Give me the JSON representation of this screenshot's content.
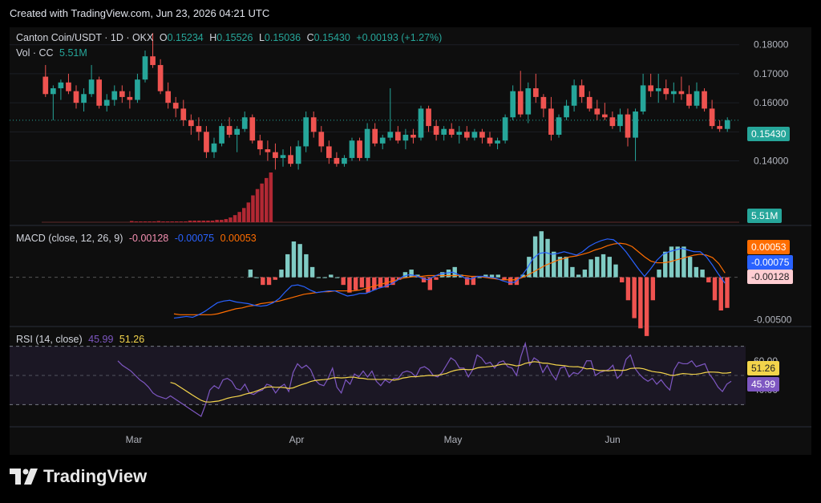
{
  "header": {
    "text": "Created with TradingView.com, Jun 23, 2026 04:21 UTC"
  },
  "footer": {
    "logo_text": "TradingView"
  },
  "colors": {
    "up": "#26a69a",
    "down": "#ef5350",
    "macd": "#2962ff",
    "signal": "#ff6d00",
    "rsi": "#7e57c2",
    "rsi_ma": "#f3d44b",
    "volume": "#b22833"
  },
  "legend": {
    "symbol": "Canton Coin/USDT · 1D · OKX",
    "o_label": "O",
    "o_value": "0.15234",
    "h_label": "H",
    "h_value": "0.15526",
    "l_label": "L",
    "l_value": "0.15036",
    "c_label": "C",
    "c_value": "0.15430",
    "change": "+0.00193 (+1.27%)",
    "vol_label": "Vol · CC",
    "vol_value": "5.51M",
    "macd_label": "MACD (close, 12, 26, 9)",
    "macd_hist": "-0.00128",
    "macd_line": "-0.00075",
    "macd_signal": "0.00053",
    "rsi_label": "RSI (14, close)",
    "rsi_value": "45.99",
    "rsi_ma": "51.26"
  },
  "tags": {
    "price": "0.15430",
    "volume": "5.51M",
    "signal": "0.00053",
    "macd": "-0.00075",
    "hist": "-0.00128",
    "rsi_ma": "51.26",
    "rsi": "45.99"
  },
  "chart_data": {
    "type": "candlestick",
    "price_axis": {
      "ticks": [
        "0.18000",
        "0.17000",
        "0.16000",
        "0.15000",
        "0.14000"
      ],
      "range": [
        0.128,
        0.186
      ]
    },
    "macd_axis": {
      "ticks": [
        "-0.00500"
      ]
    },
    "rsi_axis": {
      "ticks": [
        "60.00",
        "40.00"
      ],
      "bands": [
        70,
        30
      ]
    },
    "x_ticks": [
      "Mar",
      "Apr",
      "May",
      "Jun"
    ],
    "candles": [
      [
        0.169,
        0.173,
        0.162,
        0.163
      ],
      [
        0.163,
        0.166,
        0.154,
        0.165
      ],
      [
        0.165,
        0.168,
        0.161,
        0.167
      ],
      [
        0.167,
        0.17,
        0.163,
        0.164
      ],
      [
        0.164,
        0.166,
        0.158,
        0.16
      ],
      [
        0.16,
        0.165,
        0.157,
        0.163
      ],
      [
        0.163,
        0.173,
        0.162,
        0.168
      ],
      [
        0.168,
        0.169,
        0.158,
        0.159
      ],
      [
        0.159,
        0.163,
        0.157,
        0.161
      ],
      [
        0.161,
        0.166,
        0.159,
        0.164
      ],
      [
        0.164,
        0.166,
        0.16,
        0.162
      ],
      [
        0.162,
        0.164,
        0.158,
        0.161
      ],
      [
        0.161,
        0.17,
        0.16,
        0.168
      ],
      [
        0.168,
        0.178,
        0.167,
        0.176
      ],
      [
        0.176,
        0.184,
        0.172,
        0.173
      ],
      [
        0.173,
        0.175,
        0.163,
        0.164
      ],
      [
        0.164,
        0.167,
        0.158,
        0.16
      ],
      [
        0.16,
        0.162,
        0.155,
        0.158
      ],
      [
        0.158,
        0.161,
        0.152,
        0.154
      ],
      [
        0.154,
        0.156,
        0.149,
        0.152
      ],
      [
        0.152,
        0.155,
        0.147,
        0.15
      ],
      [
        0.15,
        0.152,
        0.141,
        0.143
      ],
      [
        0.143,
        0.148,
        0.141,
        0.146
      ],
      [
        0.146,
        0.153,
        0.145,
        0.152
      ],
      [
        0.152,
        0.155,
        0.148,
        0.149
      ],
      [
        0.149,
        0.152,
        0.143,
        0.151
      ],
      [
        0.151,
        0.157,
        0.15,
        0.155
      ],
      [
        0.155,
        0.156,
        0.146,
        0.147
      ],
      [
        0.147,
        0.149,
        0.142,
        0.144
      ],
      [
        0.144,
        0.147,
        0.14,
        0.143
      ],
      [
        0.143,
        0.146,
        0.137,
        0.141
      ],
      [
        0.141,
        0.144,
        0.138,
        0.142
      ],
      [
        0.142,
        0.145,
        0.138,
        0.139
      ],
      [
        0.139,
        0.147,
        0.137,
        0.145
      ],
      [
        0.145,
        0.157,
        0.143,
        0.155
      ],
      [
        0.155,
        0.157,
        0.148,
        0.15
      ],
      [
        0.15,
        0.152,
        0.143,
        0.145
      ],
      [
        0.145,
        0.147,
        0.139,
        0.141
      ],
      [
        0.141,
        0.143,
        0.138,
        0.139
      ],
      [
        0.139,
        0.142,
        0.138,
        0.141
      ],
      [
        0.141,
        0.148,
        0.14,
        0.147
      ],
      [
        0.147,
        0.148,
        0.14,
        0.141
      ],
      [
        0.141,
        0.153,
        0.14,
        0.151
      ],
      [
        0.151,
        0.153,
        0.145,
        0.146
      ],
      [
        0.146,
        0.149,
        0.144,
        0.148
      ],
      [
        0.148,
        0.165,
        0.147,
        0.15
      ],
      [
        0.15,
        0.152,
        0.146,
        0.147
      ],
      [
        0.147,
        0.151,
        0.144,
        0.149
      ],
      [
        0.149,
        0.151,
        0.146,
        0.148
      ],
      [
        0.148,
        0.159,
        0.147,
        0.158
      ],
      [
        0.158,
        0.159,
        0.15,
        0.152
      ],
      [
        0.152,
        0.154,
        0.147,
        0.149
      ],
      [
        0.149,
        0.152,
        0.147,
        0.151
      ],
      [
        0.151,
        0.153,
        0.148,
        0.149
      ],
      [
        0.149,
        0.152,
        0.146,
        0.15
      ],
      [
        0.15,
        0.152,
        0.147,
        0.148
      ],
      [
        0.148,
        0.151,
        0.147,
        0.15
      ],
      [
        0.15,
        0.151,
        0.146,
        0.148
      ],
      [
        0.148,
        0.15,
        0.145,
        0.146
      ],
      [
        0.146,
        0.148,
        0.144,
        0.147
      ],
      [
        0.147,
        0.156,
        0.146,
        0.155
      ],
      [
        0.155,
        0.166,
        0.154,
        0.164
      ],
      [
        0.164,
        0.171,
        0.155,
        0.156
      ],
      [
        0.156,
        0.167,
        0.153,
        0.165
      ],
      [
        0.165,
        0.17,
        0.16,
        0.162
      ],
      [
        0.162,
        0.163,
        0.155,
        0.158
      ],
      [
        0.158,
        0.162,
        0.147,
        0.149
      ],
      [
        0.149,
        0.156,
        0.148,
        0.155
      ],
      [
        0.155,
        0.161,
        0.154,
        0.159
      ],
      [
        0.159,
        0.168,
        0.157,
        0.166
      ],
      [
        0.166,
        0.168,
        0.16,
        0.162
      ],
      [
        0.162,
        0.164,
        0.157,
        0.158
      ],
      [
        0.158,
        0.161,
        0.154,
        0.156
      ],
      [
        0.156,
        0.16,
        0.154,
        0.155
      ],
      [
        0.155,
        0.157,
        0.151,
        0.152
      ],
      [
        0.152,
        0.158,
        0.15,
        0.156
      ],
      [
        0.156,
        0.158,
        0.145,
        0.148
      ],
      [
        0.148,
        0.158,
        0.14,
        0.157
      ],
      [
        0.157,
        0.17,
        0.156,
        0.166
      ],
      [
        0.166,
        0.17,
        0.162,
        0.164
      ],
      [
        0.164,
        0.17,
        0.16,
        0.165
      ],
      [
        0.165,
        0.168,
        0.161,
        0.163
      ],
      [
        0.163,
        0.167,
        0.16,
        0.164
      ],
      [
        0.164,
        0.169,
        0.161,
        0.163
      ],
      [
        0.163,
        0.166,
        0.158,
        0.159
      ],
      [
        0.159,
        0.167,
        0.158,
        0.164
      ],
      [
        0.164,
        0.165,
        0.157,
        0.158
      ],
      [
        0.158,
        0.161,
        0.151,
        0.152
      ],
      [
        0.152,
        0.154,
        0.15,
        0.151
      ],
      [
        0.151,
        0.155,
        0.15,
        0.154
      ]
    ],
    "volume": [
      0.15,
      0.1,
      0.1,
      0.1,
      0.1,
      0.1,
      0.15,
      0.1,
      0.1,
      0.1,
      0.1,
      0.1,
      0.1,
      0.2,
      0.2,
      0.2,
      0.2,
      0.2,
      0.2,
      0.3,
      0.3,
      0.4,
      0.6,
      0.9,
      1.3,
      1.8,
      2.5,
      3.4,
      4.2,
      4.9,
      5.6,
      6.3
    ],
    "macd": [
      -0.0048,
      -0.0047,
      -0.0046,
      -0.0047,
      -0.0044,
      -0.004,
      -0.0035,
      -0.003,
      -0.0028,
      -0.0027,
      -0.0029,
      -0.003,
      -0.0031,
      -0.0033,
      -0.0034,
      -0.0033,
      -0.003,
      -0.0025,
      -0.0017,
      -0.001,
      -0.0009,
      -0.0011,
      -0.0015,
      -0.0018,
      -0.0017,
      -0.0016,
      -0.0016,
      -0.0019,
      -0.0022,
      -0.0021,
      -0.0019,
      -0.0019,
      -0.0016,
      -0.0013,
      -0.0011,
      -0.0008,
      -0.0004,
      0.0001,
      0.0003,
      0.0002,
      -0.0001,
      -0.0003,
      0.0001,
      0.0004,
      0.0005,
      0.0006,
      0.0003,
      -0.0001,
      -0.0002,
      0.0001,
      0.0001,
      0.0,
      -0.0001,
      -0.0004,
      -0.0006,
      -0.0006,
      0.0,
      0.001,
      0.0022,
      0.0028,
      0.0029,
      0.0027,
      0.0028,
      0.003,
      0.0028,
      0.0026,
      0.003,
      0.0036,
      0.004,
      0.0043,
      0.0045,
      0.0044,
      0.0038,
      0.003,
      0.002,
      0.001,
      0.0001,
      0.001,
      0.002,
      0.0027,
      0.003,
      0.0032,
      0.0034,
      0.0032,
      0.003,
      0.003,
      0.0024,
      0.0014,
      0.0003,
      -0.0007
    ],
    "signal": [
      -0.0043,
      -0.0044,
      -0.0044,
      -0.0044,
      -0.0044,
      -0.0044,
      -0.0044,
      -0.0043,
      -0.0041,
      -0.0039,
      -0.0037,
      -0.0036,
      -0.0034,
      -0.0033,
      -0.0031,
      -0.003,
      -0.0029,
      -0.0028,
      -0.0026,
      -0.0024,
      -0.0022,
      -0.002,
      -0.0019,
      -0.0018,
      -0.0017,
      -0.0017,
      -0.0016,
      -0.0016,
      -0.0016,
      -0.0016,
      -0.0015,
      -0.0013,
      -0.0011,
      -0.0009,
      -0.0007,
      -0.0005,
      -0.0003,
      -0.0001,
      0.0,
      0.0001,
      0.0001,
      0.0002,
      0.0002,
      0.0002,
      0.0002,
      0.0002,
      0.0002,
      0.0002,
      0.0001,
      0.0001,
      0.0,
      -0.0001,
      -0.0002,
      -0.0003,
      -0.0003,
      -0.0003,
      -0.0001,
      0.0002,
      0.0006,
      0.001,
      0.0014,
      0.0017,
      0.002,
      0.0022,
      0.0024,
      0.0025,
      0.0027,
      0.0029,
      0.0032,
      0.0034,
      0.0037,
      0.0039,
      0.004,
      0.0039,
      0.0036,
      0.003,
      0.0024,
      0.0019,
      0.0017,
      0.0017,
      0.0018,
      0.002,
      0.0022,
      0.0024,
      0.0026,
      0.0027,
      0.0026,
      0.0023,
      0.0016,
      0.0005
    ],
    "rsi": [
      60,
      57,
      55,
      53,
      50,
      47,
      45,
      42,
      38,
      36,
      35,
      34,
      36,
      34,
      32,
      30,
      28,
      26,
      24,
      22,
      30,
      40,
      43,
      41,
      47,
      48,
      46,
      41,
      40,
      44,
      38,
      37,
      39,
      40,
      44,
      43,
      38,
      42,
      44,
      39,
      52,
      58,
      55,
      57,
      54,
      47,
      44,
      43,
      48,
      55,
      42,
      38,
      47,
      44,
      51,
      49,
      53,
      49,
      53,
      46,
      43,
      47,
      45,
      48,
      48,
      52,
      53,
      52,
      49,
      55,
      56,
      54,
      50,
      49,
      52,
      57,
      62,
      60,
      55,
      55,
      49,
      54,
      64,
      62,
      58,
      59,
      55,
      59,
      60,
      56,
      55,
      50,
      63,
      72,
      57,
      62,
      60,
      52,
      57,
      51,
      47,
      55,
      56,
      49,
      52,
      51,
      54,
      60,
      60,
      50,
      52,
      53,
      54,
      57,
      48,
      51,
      61,
      64,
      55,
      51,
      48,
      46,
      48,
      44,
      47,
      43,
      40,
      54,
      59,
      58,
      58,
      60,
      56,
      57,
      58,
      51,
      47,
      42,
      39,
      44,
      46
    ]
  }
}
